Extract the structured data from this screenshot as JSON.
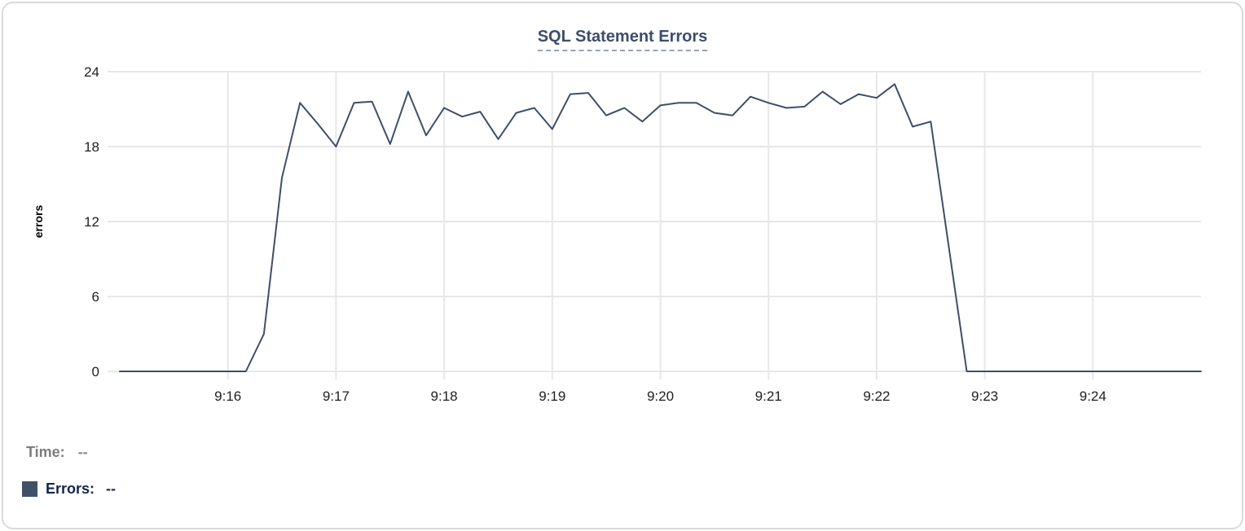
{
  "chart": {
    "title": "SQL Statement Errors",
    "y_axis_label": "errors"
  },
  "readouts": {
    "time_label": "Time:",
    "time_value": "--",
    "errors_label": "Errors:",
    "errors_value": "--"
  },
  "colors": {
    "series_line": "#3f4e68",
    "legend_swatch": "#405069",
    "title_text": "#3c4d6e",
    "title_underline": "#98a2bf",
    "gridline": "#e7e7e7",
    "axis_text": "#1f1f1f",
    "axis_title_text": "#000000",
    "time_label_gray": "#7d7d7d",
    "errors_label_navy": "#16244c",
    "card_border": "#dadada"
  },
  "chart_data": {
    "type": "line",
    "title": "SQL Statement Errors",
    "xlabel": "",
    "ylabel": "errors",
    "ylim": [
      0,
      24
    ],
    "yticks": [
      0,
      6,
      12,
      18,
      24
    ],
    "xticks": [
      "9:16",
      "9:17",
      "9:18",
      "9:19",
      "9:20",
      "9:21",
      "9:22",
      "9:23",
      "9:24"
    ],
    "x_domain": [
      "9:15:00",
      "9:25:00"
    ],
    "grid": true,
    "legend_position": "bottom-left",
    "series": [
      {
        "name": "Errors",
        "color": "#3f4e68",
        "x": [
          "9:15:00",
          "9:15:10",
          "9:15:20",
          "9:15:30",
          "9:15:40",
          "9:15:50",
          "9:16:00",
          "9:16:10",
          "9:16:20",
          "9:16:30",
          "9:16:40",
          "9:16:50",
          "9:17:00",
          "9:17:10",
          "9:17:20",
          "9:17:30",
          "9:17:40",
          "9:17:50",
          "9:18:00",
          "9:18:10",
          "9:18:20",
          "9:18:30",
          "9:18:40",
          "9:18:50",
          "9:19:00",
          "9:19:10",
          "9:19:20",
          "9:19:30",
          "9:19:40",
          "9:19:50",
          "9:20:00",
          "9:20:10",
          "9:20:20",
          "9:20:30",
          "9:20:40",
          "9:20:50",
          "9:21:00",
          "9:21:10",
          "9:21:20",
          "9:21:30",
          "9:21:40",
          "9:21:50",
          "9:22:00",
          "9:22:10",
          "9:22:20",
          "9:22:30",
          "9:22:40",
          "9:22:50",
          "9:23:00",
          "9:23:10",
          "9:23:20",
          "9:23:30",
          "9:23:40",
          "9:23:50",
          "9:24:00",
          "9:24:10",
          "9:24:20",
          "9:24:30",
          "9:24:40",
          "9:24:50",
          "9:25:00"
        ],
        "values": [
          0,
          0,
          0,
          0,
          0,
          0,
          0,
          0,
          3,
          15.5,
          21.5,
          19.8,
          18,
          21.5,
          21.6,
          18.2,
          22.4,
          18.9,
          21.1,
          20.4,
          20.8,
          18.6,
          20.7,
          21.1,
          19.4,
          22.2,
          22.3,
          20.5,
          21.1,
          20,
          21.3,
          21.5,
          21.5,
          20.7,
          20.5,
          22,
          21.5,
          21.1,
          21.2,
          22.4,
          21.4,
          22.2,
          21.9,
          23,
          19.6,
          20,
          10,
          0,
          0,
          0,
          0,
          0,
          0,
          0,
          0,
          0,
          0,
          0,
          0,
          0,
          0
        ]
      }
    ]
  }
}
